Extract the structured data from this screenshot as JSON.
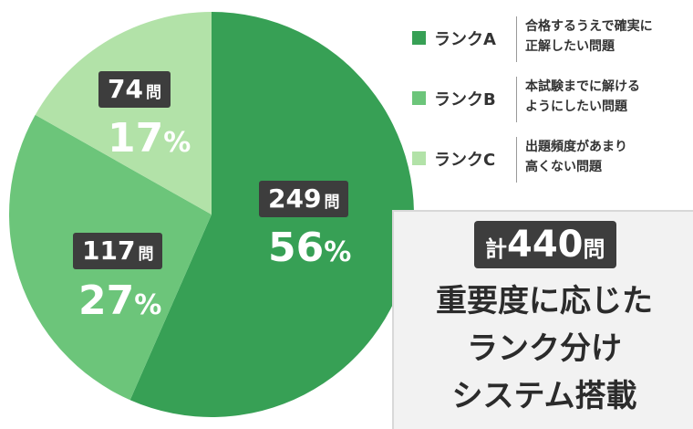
{
  "chart_data": {
    "type": "pie",
    "title": "",
    "slices": [
      {
        "name": "ランクA",
        "count": 249,
        "count_unit": "問",
        "percent": 56,
        "percent_label": "%"
      },
      {
        "name": "ランクB",
        "count": 117,
        "count_unit": "問",
        "percent": 27,
        "percent_label": "%"
      },
      {
        "name": "ランクC",
        "count": 74,
        "count_unit": "問",
        "percent": 17,
        "percent_label": "%"
      }
    ],
    "colors": [
      "#37a055",
      "#6cc57a",
      "#b2e2a8"
    ],
    "legend_position": "top-right"
  },
  "legend": [
    {
      "label": "ランクA",
      "desc_line1": "合格するうえで確実に",
      "desc_line2": "正解したい問題",
      "color": "#37a055"
    },
    {
      "label": "ランクB",
      "desc_line1": "本試験までに解ける",
      "desc_line2": "ようにしたい問題",
      "color": "#6cc57a"
    },
    {
      "label": "ランクC",
      "desc_line1": "出題頻度があまり",
      "desc_line2": "高くない問題",
      "color": "#b2e2a8"
    }
  ],
  "callout": {
    "total_prefix": "計",
    "total_number": "440",
    "total_unit": "問",
    "line1": "重要度に応じた",
    "line2": "ランク分け",
    "line3": "システム搭載"
  }
}
